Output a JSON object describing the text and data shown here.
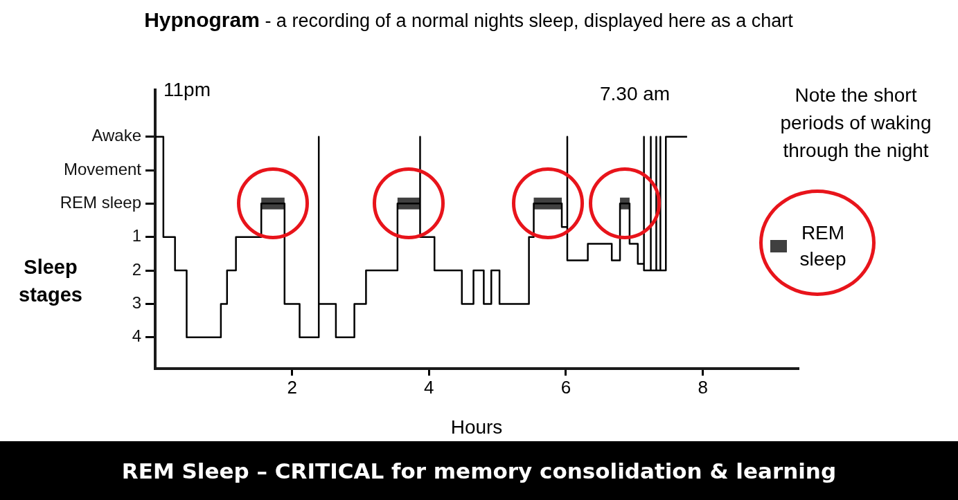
{
  "chart_data": {
    "type": "step",
    "title": "Hypnogram",
    "subtitle": "- a recording of a normal nights sleep, displayed here as a chart",
    "xlabel": "Hours",
    "ylabel": "Sleep stages",
    "annotations": [
      "Note the short periods of waking through the night",
      "REM Sleep – CRITICAL for memory consolidation & learning",
      "11pm",
      "7.30 am"
    ],
    "xlim": [
      0,
      9.39
    ],
    "xticks": [
      2,
      4,
      6,
      8
    ],
    "ylim": [
      4.94,
      -3.4
    ],
    "yticks": [
      {
        "value": -2,
        "label": "Awake"
      },
      {
        "value": -1,
        "label": "Movement"
      },
      {
        "value": 0,
        "label": "REM sleep"
      },
      1,
      2,
      3,
      4
    ],
    "grid": false,
    "legend": "right",
    "marker": "none",
    "line_style": "solid",
    "series": [
      {
        "color": "#000000",
        "x": [
          0,
          0.12,
          0.29,
          0.46,
          0.96,
          1.05,
          1.18,
          1.55,
          1.89,
          2.11,
          2.39,
          2.39,
          2.64,
          2.91,
          3.08,
          3.54,
          3.87,
          3.87,
          4.08,
          4.48,
          4.65,
          4.8,
          4.91,
          5.03,
          5.46,
          5.53,
          5.94,
          6.02,
          6.02,
          6.32,
          6.67,
          6.79,
          6.93,
          7.05,
          7.14,
          7.14,
          7.24,
          7.24,
          7.32,
          7.32,
          7.38,
          7.38,
          7.46,
          7.77
        ],
        "values": [
          -2,
          1,
          2,
          4,
          3,
          2,
          1,
          0,
          3,
          4,
          -2,
          3,
          4,
          3,
          2,
          0,
          -2,
          1,
          2,
          3,
          2,
          3,
          2,
          3,
          1,
          0,
          0.7,
          -2,
          1.7,
          1.2,
          1.7,
          0,
          1.2,
          1.8,
          -2,
          2,
          -2,
          2,
          -2,
          2,
          -2,
          2,
          -2,
          -2
        ]
      },
      {
        "type": "line",
        "name": "REM sleep",
        "color": "#404040",
        "x": [
          1.55,
          1.89,
          1.9,
          3.54,
          3.87,
          3.9,
          5.53,
          5.94,
          5.95,
          6.79,
          6.93
        ],
        "values": [
          0,
          0,
          null,
          0,
          0,
          null,
          0,
          0,
          null,
          0,
          0
        ]
      }
    ]
  }
}
